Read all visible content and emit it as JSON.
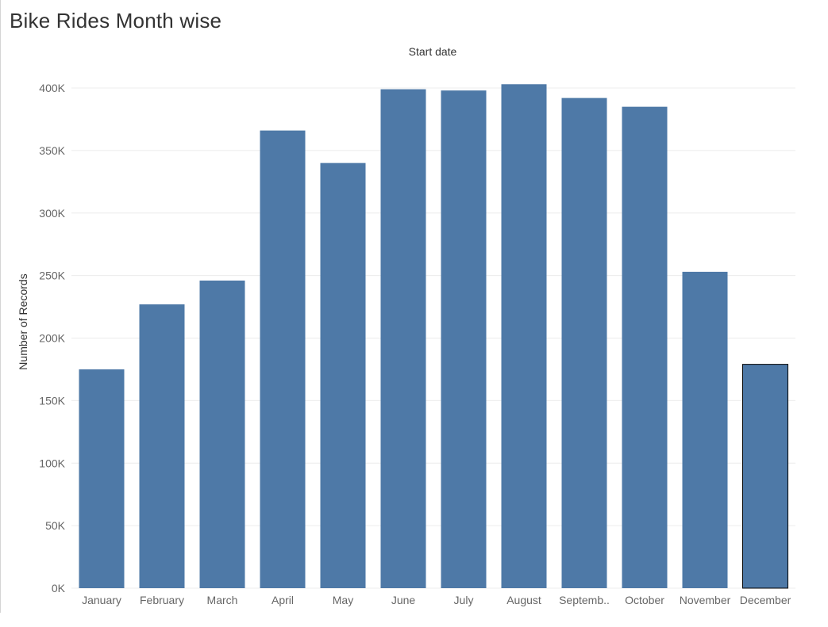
{
  "title": "Bike Rides Month wise",
  "colors": {
    "bar": "#4e79a7",
    "gridline": "#ececec",
    "axis_text": "#666666",
    "label_text": "#333333",
    "highlight_stroke": "#000000"
  },
  "chart_data": {
    "type": "bar",
    "title": "",
    "column_header": "Start date",
    "xlabel": "",
    "ylabel": "Number of Records",
    "categories": [
      "January",
      "February",
      "March",
      "April",
      "May",
      "June",
      "July",
      "August",
      "Septemb..",
      "October",
      "November",
      "December"
    ],
    "values": [
      175000,
      227000,
      246000,
      366000,
      340000,
      399000,
      398000,
      403000,
      392000,
      385000,
      253000,
      179000
    ],
    "ylim": [
      0,
      420000
    ],
    "yticks": [
      0,
      50000,
      100000,
      150000,
      200000,
      250000,
      300000,
      350000,
      400000
    ],
    "ytick_labels": [
      "0K",
      "50K",
      "100K",
      "150K",
      "200K",
      "250K",
      "300K",
      "350K",
      "400K"
    ],
    "grid": true,
    "legend": "none",
    "highlighted_category": "December"
  }
}
